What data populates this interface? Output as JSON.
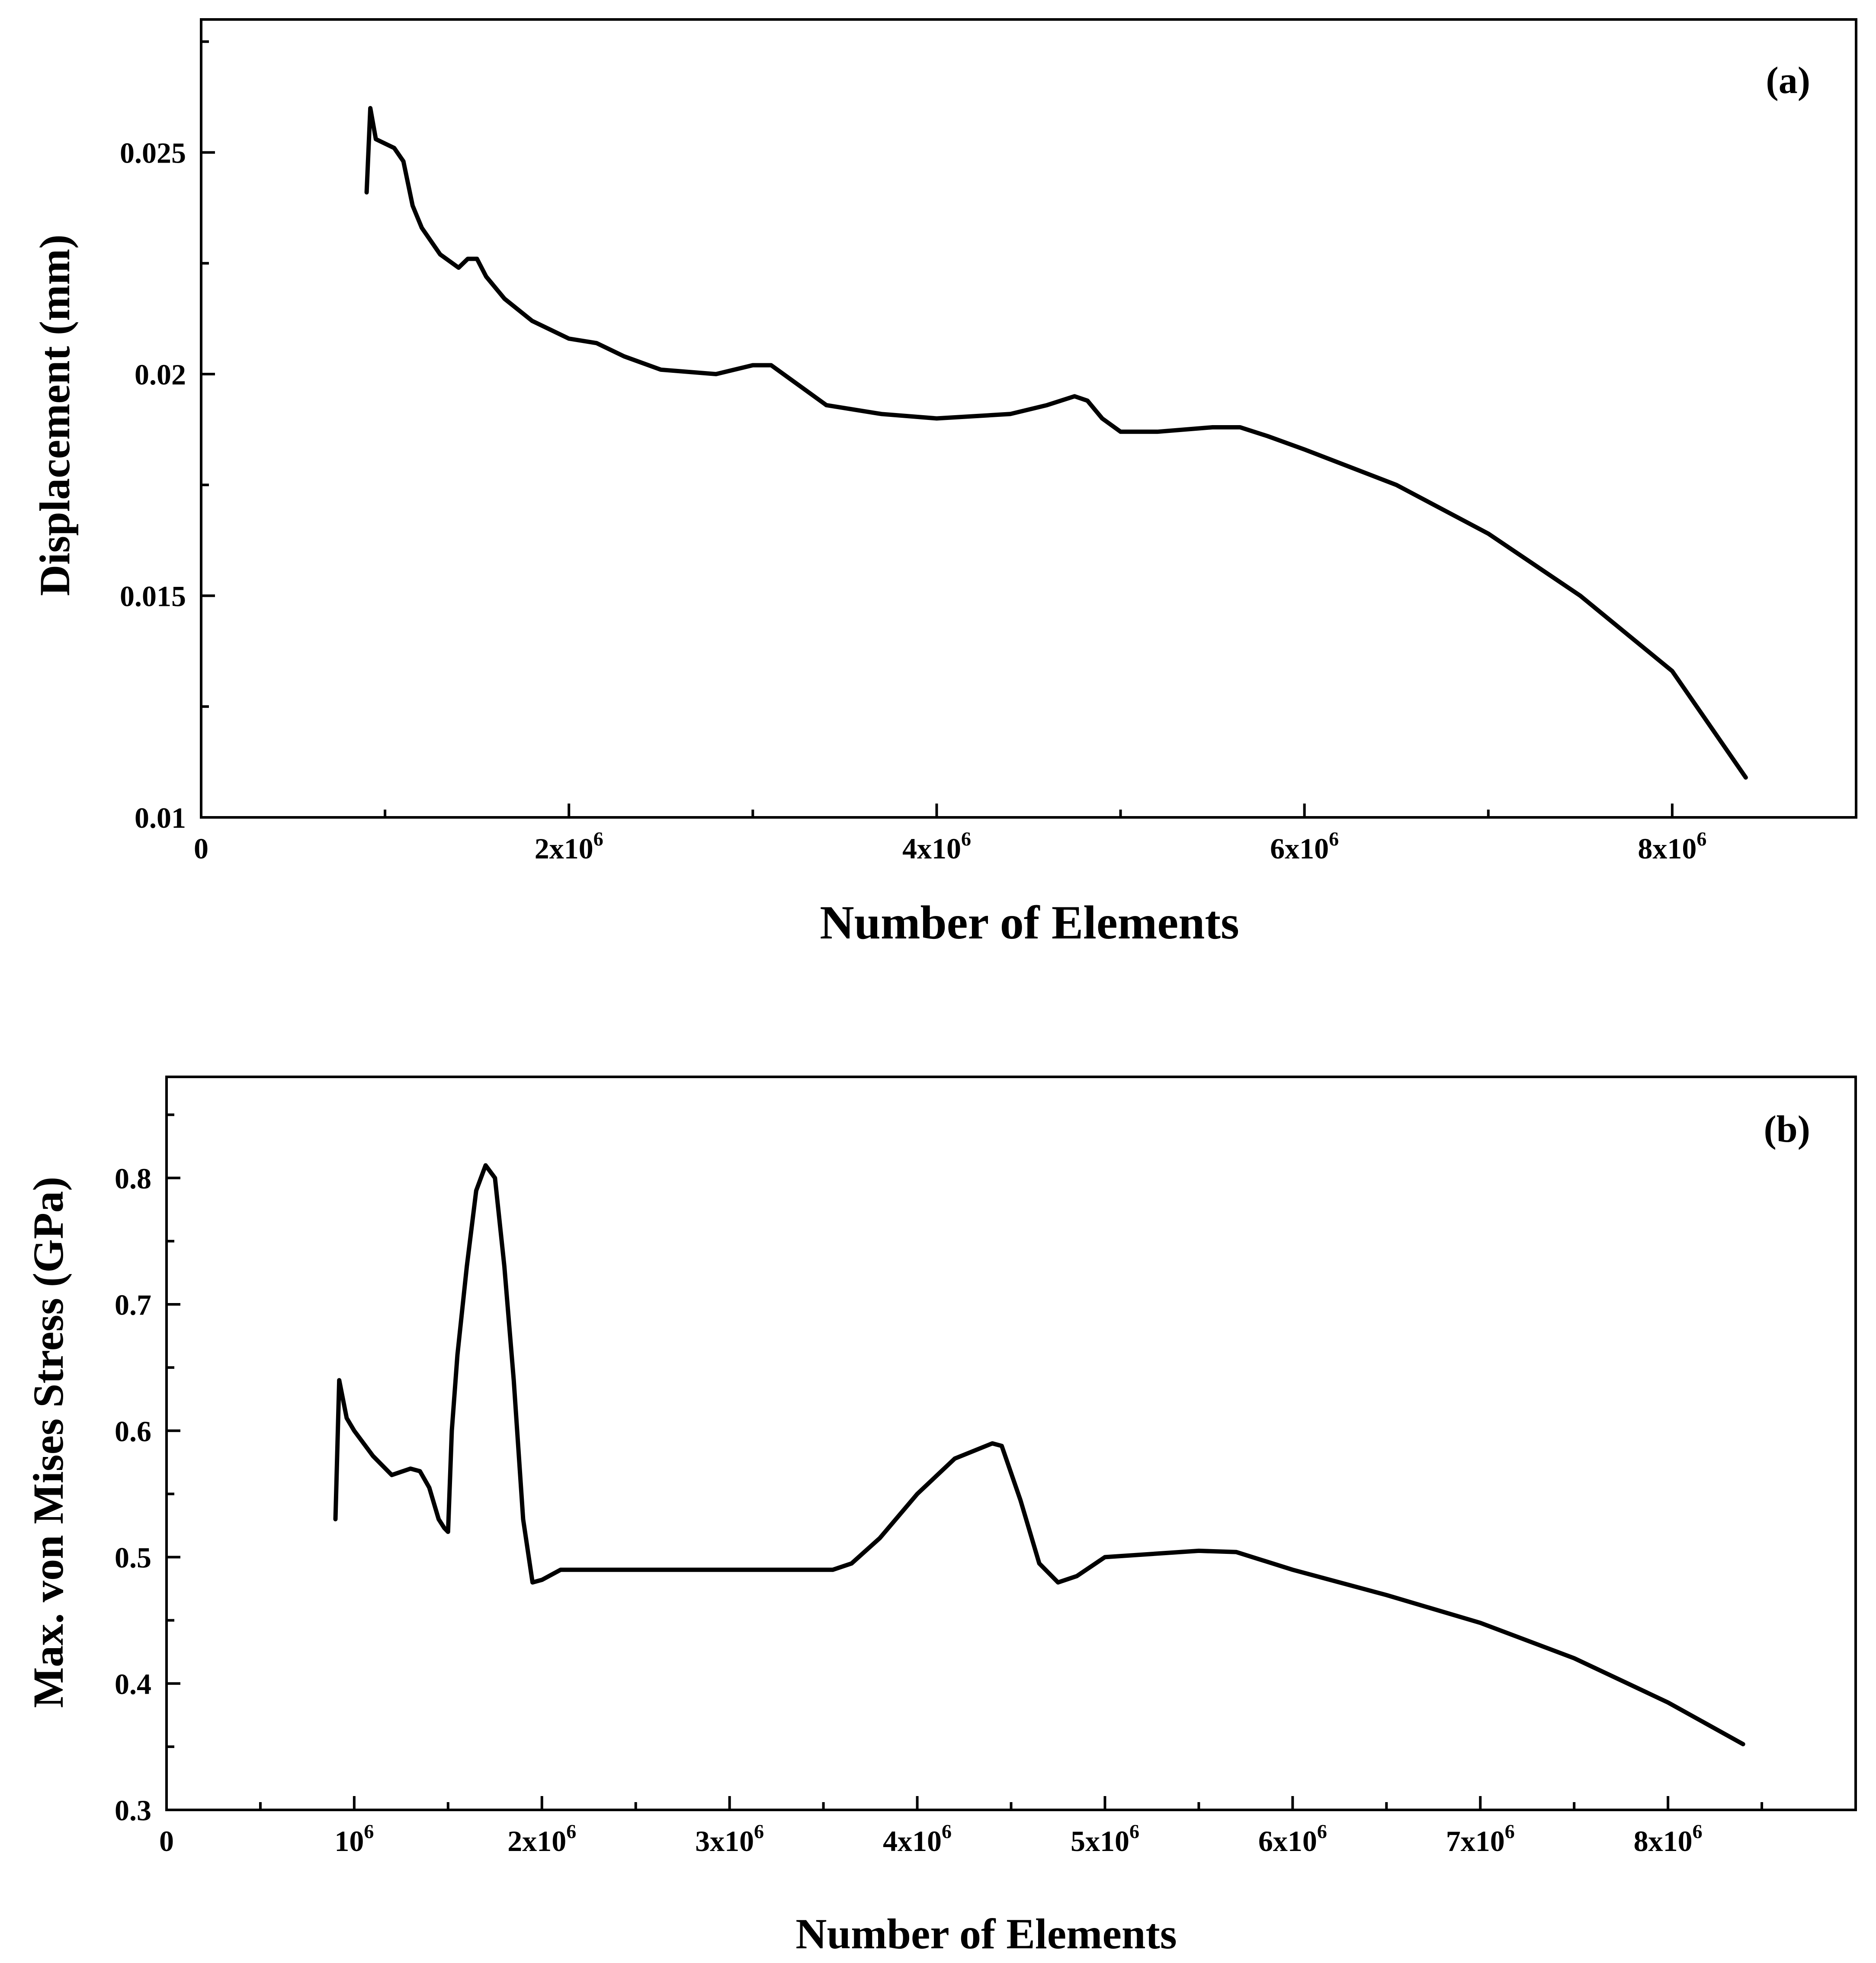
{
  "chart_data": [
    {
      "type": "line",
      "panel_label": "(a)",
      "xlabel": "Number of Elements",
      "ylabel": "Displacement (mm)",
      "xlim": [
        0,
        9000000
      ],
      "ylim": [
        0.01,
        0.028
      ],
      "x_ticks": [
        {
          "value": 0,
          "label": "0",
          "exp": ""
        },
        {
          "value": 2000000,
          "label": "2x10",
          "exp": "6"
        },
        {
          "value": 4000000,
          "label": "4x10",
          "exp": "6"
        },
        {
          "value": 6000000,
          "label": "6x10",
          "exp": "6"
        },
        {
          "value": 8000000,
          "label": "8x10",
          "exp": "6"
        }
      ],
      "x_minor_ticks": [
        1000000,
        3000000,
        5000000,
        7000000,
        9000000
      ],
      "y_ticks": [
        {
          "value": 0.01,
          "label": "0.01"
        },
        {
          "value": 0.015,
          "label": "0.015"
        },
        {
          "value": 0.02,
          "label": "0.02"
        },
        {
          "value": 0.025,
          "label": "0.025"
        }
      ],
      "y_minor_ticks": [
        0.0125,
        0.0175,
        0.0225,
        0.0275
      ],
      "grid": false,
      "series": [
        {
          "x": [
            900000,
            920000,
            950000,
            1000000,
            1050000,
            1100000,
            1150000,
            1200000,
            1300000,
            1400000,
            1450000,
            1500000,
            1550000,
            1650000,
            1800000,
            2000000,
            2150000,
            2300000,
            2500000,
            2800000,
            3000000,
            3100000,
            3200000,
            3400000,
            3700000,
            4000000,
            4400000,
            4600000,
            4750000,
            4820000,
            4900000,
            5000000,
            5200000,
            5500000,
            5650000,
            5800000,
            6000000,
            6500000,
            7000000,
            7500000,
            8000000,
            8400000
          ],
          "y": [
            0.0241,
            0.026,
            0.0253,
            0.0252,
            0.0251,
            0.0248,
            0.0238,
            0.0233,
            0.0227,
            0.0224,
            0.0226,
            0.0226,
            0.0222,
            0.0217,
            0.0212,
            0.0208,
            0.0207,
            0.0204,
            0.0201,
            0.02,
            0.0202,
            0.0202,
            0.0199,
            0.0193,
            0.0191,
            0.019,
            0.0191,
            0.0193,
            0.0195,
            0.0194,
            0.019,
            0.0187,
            0.0187,
            0.0188,
            0.0188,
            0.0186,
            0.0183,
            0.0175,
            0.0164,
            0.015,
            0.0133,
            0.0109
          ]
        }
      ]
    },
    {
      "type": "line",
      "panel_label": "(b)",
      "xlabel": "Number of Elements",
      "ylabel": "Max. von Mises Stress (GPa)",
      "xlim": [
        0,
        9000000
      ],
      "ylim": [
        0.3,
        0.88
      ],
      "x_ticks": [
        {
          "value": 0,
          "label": "0",
          "exp": ""
        },
        {
          "value": 1000000,
          "label": "10",
          "exp": "6"
        },
        {
          "value": 2000000,
          "label": "2x10",
          "exp": "6"
        },
        {
          "value": 3000000,
          "label": "3x10",
          "exp": "6"
        },
        {
          "value": 4000000,
          "label": "4x10",
          "exp": "6"
        },
        {
          "value": 5000000,
          "label": "5x10",
          "exp": "6"
        },
        {
          "value": 6000000,
          "label": "6x10",
          "exp": "6"
        },
        {
          "value": 7000000,
          "label": "7x10",
          "exp": "6"
        },
        {
          "value": 8000000,
          "label": "8x10",
          "exp": "6"
        }
      ],
      "x_minor_ticks": [
        500000,
        1500000,
        2500000,
        3500000,
        4500000,
        5500000,
        6500000,
        7500000,
        8500000
      ],
      "y_ticks": [
        {
          "value": 0.3,
          "label": "0.3"
        },
        {
          "value": 0.4,
          "label": "0.4"
        },
        {
          "value": 0.5,
          "label": "0.5"
        },
        {
          "value": 0.6,
          "label": "0.6"
        },
        {
          "value": 0.7,
          "label": "0.7"
        },
        {
          "value": 0.8,
          "label": "0.8"
        }
      ],
      "y_minor_ticks": [
        0.35,
        0.45,
        0.55,
        0.65,
        0.75,
        0.85
      ],
      "grid": false,
      "series": [
        {
          "x": [
            900000,
            920000,
            960000,
            1000000,
            1100000,
            1200000,
            1300000,
            1350000,
            1400000,
            1450000,
            1480000,
            1500000,
            1520000,
            1550000,
            1600000,
            1650000,
            1700000,
            1750000,
            1800000,
            1850000,
            1900000,
            1950000,
            2000000,
            2100000,
            2200000,
            3000000,
            3550000,
            3650000,
            3800000,
            4000000,
            4200000,
            4400000,
            4450000,
            4550000,
            4650000,
            4750000,
            4850000,
            5000000,
            5500000,
            5700000,
            6000000,
            6500000,
            7000000,
            7500000,
            8000000,
            8400000
          ],
          "y": [
            0.53,
            0.64,
            0.61,
            0.6,
            0.58,
            0.565,
            0.57,
            0.568,
            0.555,
            0.53,
            0.523,
            0.52,
            0.6,
            0.66,
            0.73,
            0.79,
            0.81,
            0.8,
            0.73,
            0.64,
            0.53,
            0.48,
            0.482,
            0.49,
            0.49,
            0.49,
            0.49,
            0.495,
            0.515,
            0.55,
            0.578,
            0.59,
            0.588,
            0.545,
            0.495,
            0.48,
            0.485,
            0.5,
            0.505,
            0.504,
            0.49,
            0.47,
            0.448,
            0.42,
            0.385,
            0.352
          ]
        }
      ]
    }
  ]
}
